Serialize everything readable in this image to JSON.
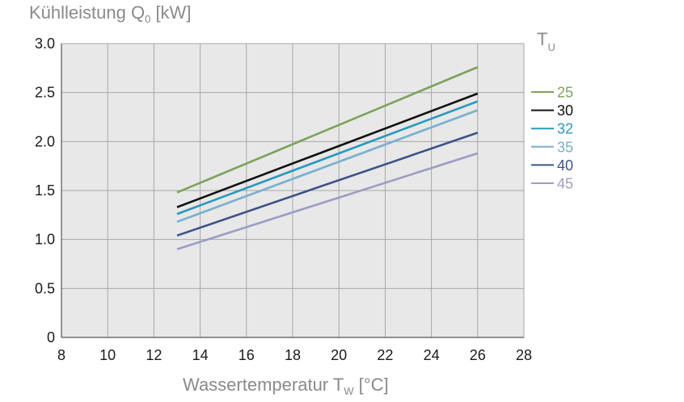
{
  "chart_data": {
    "type": "line",
    "ylabel": {
      "main": "Kühlleistung Q",
      "sub": "0",
      "unit": " [kW]"
    },
    "xlabel": {
      "main": "Wassertemperatur T",
      "sub": "W",
      "unit": " [°C]"
    },
    "legend_title": {
      "main": "T",
      "sub": "U"
    },
    "xlim": [
      8,
      28
    ],
    "ylim": [
      0,
      3.0
    ],
    "xticks": [
      8,
      10,
      12,
      14,
      16,
      18,
      20,
      22,
      24,
      26,
      28
    ],
    "yticks": [
      0,
      0.5,
      1.0,
      1.5,
      2.0,
      2.5,
      3.0
    ],
    "ytick_labels": [
      "0",
      "0.5",
      "1.0",
      "1.5",
      "2.0",
      "2.5",
      "3.0"
    ],
    "grid": true,
    "legend_position": "right",
    "series": [
      {
        "name": "25",
        "color": "#7da25a",
        "x": [
          13,
          26
        ],
        "y": [
          1.48,
          2.76
        ]
      },
      {
        "name": "30",
        "color": "#111111",
        "x": [
          13,
          26
        ],
        "y": [
          1.33,
          2.49
        ]
      },
      {
        "name": "32",
        "color": "#2a98bf",
        "x": [
          13,
          26
        ],
        "y": [
          1.26,
          2.41
        ]
      },
      {
        "name": "35",
        "color": "#78b0cf",
        "x": [
          13,
          26
        ],
        "y": [
          1.18,
          2.32
        ]
      },
      {
        "name": "40",
        "color": "#3d5389",
        "x": [
          13,
          26
        ],
        "y": [
          1.04,
          2.09
        ]
      },
      {
        "name": "45",
        "color": "#9c9cc6",
        "x": [
          13,
          26
        ],
        "y": [
          0.9,
          1.88
        ]
      }
    ]
  }
}
